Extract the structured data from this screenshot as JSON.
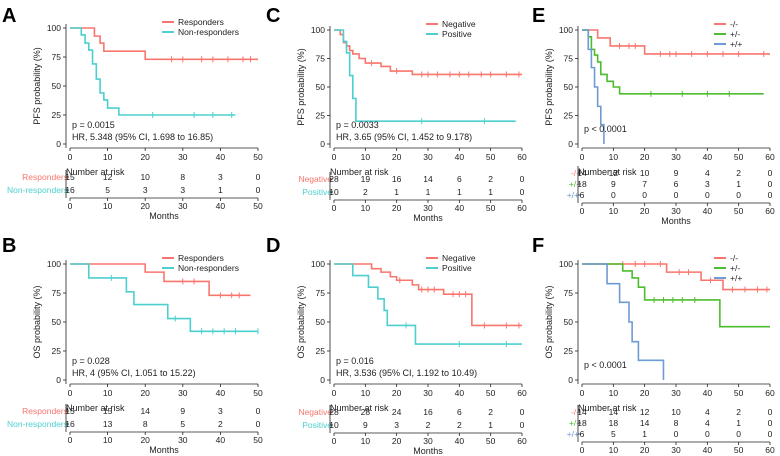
{
  "x_axis_label": "Months",
  "risk_title": "Number at risk",
  "chart_data": [
    {
      "panel": "A",
      "type": "line",
      "ylabel": "PFS probability (%)",
      "xlim": [
        0,
        50
      ],
      "ylim": [
        0,
        100
      ],
      "xticks": [
        0,
        10,
        20,
        30,
        40,
        50
      ],
      "yticks": [
        0,
        25,
        50,
        75,
        100
      ],
      "series": [
        {
          "name": "Responders",
          "color": "#F8766D",
          "steps": [
            [
              0,
              100
            ],
            [
              6.5,
              93
            ],
            [
              8,
              87
            ],
            [
              9,
              80
            ],
            [
              19,
              80
            ],
            [
              20,
              73
            ],
            [
              50,
              73
            ]
          ],
          "censor": [
            27,
            30,
            35,
            38,
            42,
            46,
            48
          ]
        },
        {
          "name": "Non-responders",
          "color": "#4DCFD0",
          "steps": [
            [
              0,
              100
            ],
            [
              3,
              94
            ],
            [
              4,
              87
            ],
            [
              5,
              81
            ],
            [
              6,
              69
            ],
            [
              7,
              56
            ],
            [
              8,
              44
            ],
            [
              9,
              38
            ],
            [
              10,
              31
            ],
            [
              13,
              25
            ],
            [
              44,
              25
            ]
          ],
          "censor": [
            22,
            33,
            38,
            43
          ]
        }
      ],
      "annotations": [
        "p = 0.0015",
        "HR, 5.348 (95% CI, 1.698 to 16.85)"
      ],
      "risk": {
        "xticks": [
          0,
          10,
          20,
          30,
          40,
          50
        ],
        "rows": [
          {
            "label": "Responders",
            "color": "#F8766D",
            "values": [
              "15",
              "12",
              "10",
              "8",
              "3",
              "0"
            ]
          },
          {
            "label": "Non-responders",
            "color": "#4DCFD0",
            "values": [
              "16",
              "5",
              "3",
              "3",
              "1",
              "0"
            ]
          }
        ]
      }
    },
    {
      "panel": "B",
      "type": "line",
      "ylabel": "OS probability (%)",
      "xlim": [
        0,
        50
      ],
      "ylim": [
        0,
        100
      ],
      "xticks": [
        0,
        10,
        20,
        30,
        40,
        50
      ],
      "yticks": [
        0,
        25,
        50,
        75,
        100
      ],
      "series": [
        {
          "name": "Responders",
          "color": "#F8766D",
          "steps": [
            [
              0,
              100
            ],
            [
              20,
              93
            ],
            [
              25,
              85
            ],
            [
              37,
              73
            ],
            [
              48,
              73
            ]
          ],
          "censor": [
            30,
            33,
            40,
            43,
            45
          ]
        },
        {
          "name": "Non-responders",
          "color": "#4DCFD0",
          "steps": [
            [
              0,
              100
            ],
            [
              5,
              88
            ],
            [
              15,
              76
            ],
            [
              17,
              65
            ],
            [
              26,
              53
            ],
            [
              32,
              42
            ],
            [
              50,
              42
            ]
          ],
          "censor": [
            11,
            28,
            35,
            38,
            41,
            44,
            50
          ]
        }
      ],
      "annotations": [
        "p = 0.028",
        "HR, 4 (95% CI, 1.051 to 15.22)"
      ],
      "risk": {
        "xticks": [
          0,
          10,
          20,
          30,
          40,
          50
        ],
        "rows": [
          {
            "label": "Responders",
            "color": "#F8766D",
            "values": [
              "15",
              "15",
              "14",
              "9",
              "3",
              "0"
            ]
          },
          {
            "label": "Non-responders",
            "color": "#4DCFD0",
            "values": [
              "16",
              "13",
              "8",
              "5",
              "2",
              "0"
            ]
          }
        ]
      }
    },
    {
      "panel": "C",
      "type": "line",
      "ylabel": "PFS probability (%)",
      "xlim": [
        0,
        60
      ],
      "ylim": [
        0,
        100
      ],
      "xticks": [
        0,
        10,
        20,
        30,
        40,
        50,
        60
      ],
      "yticks": [
        0,
        25,
        50,
        75,
        100
      ],
      "series": [
        {
          "name": "Negative",
          "color": "#F8766D",
          "steps": [
            [
              0,
              100
            ],
            [
              2,
              96
            ],
            [
              3,
              89
            ],
            [
              4,
              86
            ],
            [
              5,
              82
            ],
            [
              6,
              79
            ],
            [
              8,
              75
            ],
            [
              10,
              71
            ],
            [
              15,
              68
            ],
            [
              18,
              64
            ],
            [
              25,
              61
            ],
            [
              60,
              61
            ]
          ],
          "censor": [
            12,
            20,
            28,
            30,
            33,
            37,
            40,
            43,
            47,
            50,
            55,
            59
          ]
        },
        {
          "name": "Positive",
          "color": "#4DCFD0",
          "steps": [
            [
              0,
              100
            ],
            [
              3,
              90
            ],
            [
              4,
              80
            ],
            [
              5,
              60
            ],
            [
              6,
              40
            ],
            [
              7,
              20
            ],
            [
              58,
              20
            ]
          ],
          "censor": [
            28,
            48
          ]
        }
      ],
      "annotations": [
        "p = 0.0033",
        "HR, 3.65 (95% CI, 1.452 to 9.178)"
      ],
      "risk": {
        "xticks": [
          0,
          10,
          20,
          30,
          40,
          50,
          60
        ],
        "rows": [
          {
            "label": "Negative",
            "color": "#F8766D",
            "values": [
              "28",
              "19",
              "16",
              "14",
              "6",
              "2",
              "0"
            ]
          },
          {
            "label": "Positive",
            "color": "#4DCFD0",
            "values": [
              "10",
              "2",
              "1",
              "1",
              "1",
              "1",
              "0"
            ]
          }
        ]
      }
    },
    {
      "panel": "D",
      "type": "line",
      "ylabel": "OS probability (%)",
      "xlim": [
        0,
        60
      ],
      "ylim": [
        0,
        100
      ],
      "xticks": [
        0,
        10,
        20,
        30,
        40,
        50,
        60
      ],
      "yticks": [
        0,
        25,
        50,
        75,
        100
      ],
      "series": [
        {
          "name": "Negative",
          "color": "#F8766D",
          "steps": [
            [
              0,
              100
            ],
            [
              12,
              96
            ],
            [
              15,
              93
            ],
            [
              18,
              89
            ],
            [
              20,
              86
            ],
            [
              25,
              82
            ],
            [
              27,
              78
            ],
            [
              35,
              74
            ],
            [
              44,
              47
            ],
            [
              60,
              47
            ]
          ],
          "censor": [
            21,
            28,
            30,
            32,
            38,
            40,
            42,
            48,
            55,
            59
          ]
        },
        {
          "name": "Positive",
          "color": "#4DCFD0",
          "steps": [
            [
              0,
              100
            ],
            [
              6,
              90
            ],
            [
              11,
              80
            ],
            [
              14,
              70
            ],
            [
              16,
              60
            ],
            [
              17,
              47
            ],
            [
              26,
              31
            ],
            [
              60,
              31
            ]
          ],
          "censor": [
            23,
            40,
            55
          ]
        }
      ],
      "annotations": [
        "p = 0.016",
        "HR, 3.536 (95% CI, 1.192 to 10.49)"
      ],
      "risk": {
        "xticks": [
          0,
          10,
          20,
          30,
          40,
          50,
          60
        ],
        "rows": [
          {
            "label": "Negative",
            "color": "#F8766D",
            "values": [
              "28",
              "28",
              "24",
              "16",
              "6",
              "2",
              "0"
            ]
          },
          {
            "label": "Positive",
            "color": "#4DCFD0",
            "values": [
              "10",
              "9",
              "3",
              "2",
              "2",
              "1",
              "0"
            ]
          }
        ]
      }
    },
    {
      "panel": "E",
      "type": "line",
      "ylabel": "PFS probability (%)",
      "xlim": [
        0,
        60
      ],
      "ylim": [
        0,
        100
      ],
      "xticks": [
        0,
        10,
        20,
        30,
        40,
        50,
        60
      ],
      "yticks": [
        0,
        25,
        50,
        75,
        100
      ],
      "series": [
        {
          "name": "-/-",
          "color": "#F8766D",
          "steps": [
            [
              0,
              100
            ],
            [
              5,
              93
            ],
            [
              9,
              86
            ],
            [
              20,
              79
            ],
            [
              60,
              79
            ]
          ],
          "censor": [
            12,
            15,
            17,
            25,
            28,
            30,
            35,
            40,
            45,
            50,
            58
          ]
        },
        {
          "name": "+/-",
          "color": "#4DBD2F",
          "steps": [
            [
              0,
              100
            ],
            [
              2,
              94
            ],
            [
              3,
              83
            ],
            [
              4,
              78
            ],
            [
              5,
              72
            ],
            [
              6,
              61
            ],
            [
              8,
              55
            ],
            [
              10,
              50
            ],
            [
              12,
              44
            ],
            [
              58,
              44
            ]
          ],
          "censor": [
            22,
            32,
            40,
            47
          ]
        },
        {
          "name": "+/+",
          "color": "#6D9BD3",
          "steps": [
            [
              0,
              100
            ],
            [
              2,
              83
            ],
            [
              3,
              67
            ],
            [
              4,
              50
            ],
            [
              5,
              33
            ],
            [
              6,
              17
            ],
            [
              7,
              0
            ],
            [
              7,
              0
            ]
          ],
          "censor": []
        }
      ],
      "annotations": [
        "p < 0.0001"
      ],
      "risk": {
        "xticks": [
          0,
          10,
          20,
          30,
          40,
          50,
          60
        ],
        "rows": [
          {
            "label": "-/-",
            "color": "#F8766D",
            "values": [
              "14",
              "12",
              "10",
              "9",
              "4",
              "2",
              "0"
            ]
          },
          {
            "label": "+/-",
            "color": "#4DBD2F",
            "values": [
              "18",
              "9",
              "7",
              "6",
              "3",
              "1",
              "0"
            ]
          },
          {
            "label": "+/+",
            "color": "#6D9BD3",
            "values": [
              "6",
              "0",
              "0",
              "0",
              "0",
              "0",
              "0"
            ]
          }
        ]
      }
    },
    {
      "panel": "F",
      "type": "line",
      "ylabel": "OS probability (%)",
      "xlim": [
        0,
        60
      ],
      "ylim": [
        0,
        100
      ],
      "xticks": [
        0,
        10,
        20,
        30,
        40,
        50,
        60
      ],
      "yticks": [
        0,
        25,
        50,
        75,
        100
      ],
      "series": [
        {
          "name": "-/-",
          "color": "#F8766D",
          "steps": [
            [
              0,
              100
            ],
            [
              27,
              93
            ],
            [
              38,
              86
            ],
            [
              45,
              78
            ],
            [
              60,
              78
            ]
          ],
          "censor": [
            13,
            17,
            20,
            25,
            31,
            34,
            41,
            48,
            52,
            56,
            59
          ]
        },
        {
          "name": "+/-",
          "color": "#4DBD2F",
          "steps": [
            [
              0,
              100
            ],
            [
              13,
              94
            ],
            [
              16,
              88
            ],
            [
              18,
              80
            ],
            [
              20,
              69
            ],
            [
              44,
              46
            ],
            [
              60,
              46
            ]
          ],
          "censor": [
            23,
            26,
            29,
            32,
            36
          ]
        },
        {
          "name": "+/+",
          "color": "#6D9BD3",
          "steps": [
            [
              0,
              100
            ],
            [
              8,
              83
            ],
            [
              12,
              67
            ],
            [
              15,
              50
            ],
            [
              16,
              33
            ],
            [
              18,
              17
            ],
            [
              26,
              0
            ]
          ],
          "censor": []
        }
      ],
      "annotations": [
        "p < 0.0001"
      ],
      "risk": {
        "xticks": [
          0,
          10,
          20,
          30,
          40,
          50,
          60
        ],
        "rows": [
          {
            "label": "-/-",
            "color": "#F8766D",
            "values": [
              "14",
              "14",
              "12",
              "10",
              "4",
              "2",
              "0"
            ]
          },
          {
            "label": "+/-",
            "color": "#4DBD2F",
            "values": [
              "18",
              "18",
              "14",
              "8",
              "4",
              "1",
              "0"
            ]
          },
          {
            "label": "+/+",
            "color": "#6D9BD3",
            "values": [
              "6",
              "5",
              "1",
              "0",
              "0",
              "0",
              "0"
            ]
          }
        ]
      }
    }
  ]
}
